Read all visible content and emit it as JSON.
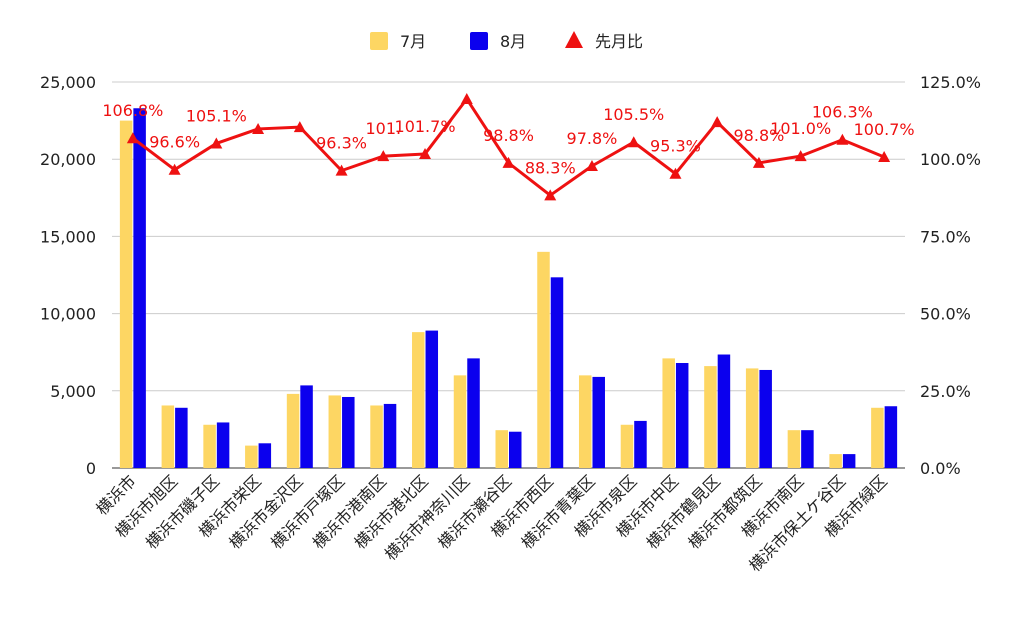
{
  "chart_data": {
    "type": "bar",
    "title": "",
    "categories": [
      "横浜市",
      "横浜市旭区",
      "横浜市磯子区",
      "横浜市栄区",
      "横浜市金沢区",
      "横浜市戸塚区",
      "横浜市港南区",
      "横浜市港北区",
      "横浜市神奈川区",
      "横浜市瀬谷区",
      "横浜市西区",
      "横浜市青葉区",
      "横浜市泉区",
      "横浜市中区",
      "横浜市鶴見区",
      "横浜市都筑区",
      "横浜市南区",
      "横浜市保土ケ谷区",
      "横浜市緑区"
    ],
    "series": [
      {
        "name": "7月",
        "type": "bar",
        "axis": "left",
        "color": "#fdd663",
        "values": [
          22500,
          4050,
          2800,
          1450,
          4800,
          4700,
          4050,
          8800,
          6000,
          2450,
          14000,
          6000,
          2800,
          7100,
          6600,
          6450,
          2450,
          900,
          3900
        ]
      },
      {
        "name": "8月",
        "type": "bar",
        "axis": "left",
        "color": "#0b00ee",
        "values": [
          23300,
          3900,
          2950,
          1600,
          5350,
          4600,
          4150,
          8900,
          7100,
          2350,
          12350,
          5900,
          3050,
          6800,
          7350,
          6350,
          2450,
          900,
          4000
        ]
      },
      {
        "name": "先月比",
        "type": "line",
        "axis": "right",
        "color": "#ee1111",
        "values": [
          106.8,
          96.6,
          105.1,
          109.8,
          110.4,
          96.3,
          101.0,
          101.7,
          119.5,
          98.8,
          88.3,
          97.8,
          105.5,
          95.3,
          112.0,
          98.8,
          101.0,
          106.3,
          100.7
        ]
      }
    ],
    "data_labels": [
      {
        "index": 0,
        "text": "106.8%"
      },
      {
        "index": 1,
        "text": "96.6%"
      },
      {
        "index": 2,
        "text": "105.1%"
      },
      {
        "index": 5,
        "text": "96.3%"
      },
      {
        "index": 6,
        "text": "101."
      },
      {
        "index": 7,
        "text": "101.7%"
      },
      {
        "index": 9,
        "text": "98.8%"
      },
      {
        "index": 10,
        "text": "88.3%"
      },
      {
        "index": 11,
        "text": "97.8%"
      },
      {
        "index": 12,
        "text": "105.5%"
      },
      {
        "index": 13,
        "text": "95.3%"
      },
      {
        "index": 15,
        "text": "98.8%"
      },
      {
        "index": 16,
        "text": "101.0%"
      },
      {
        "index": 17,
        "text": "106.3%"
      },
      {
        "index": 18,
        "text": "100.7%"
      }
    ],
    "y_left": {
      "ylim": [
        0,
        25000
      ],
      "ticks": [
        "0",
        "5,000",
        "10,000",
        "15,000",
        "20,000",
        "25,000"
      ]
    },
    "y_right": {
      "ylim": [
        0,
        125
      ],
      "ticks": [
        "0.0%",
        "25.0%",
        "50.0%",
        "75.0%",
        "100.0%",
        "125.0%"
      ]
    },
    "grid": true,
    "legend": {
      "position": "top",
      "items": [
        "7月",
        "8月",
        "先月比"
      ]
    }
  }
}
